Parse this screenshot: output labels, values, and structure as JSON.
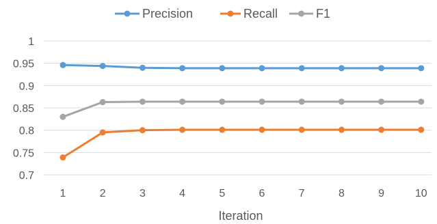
{
  "chart_data": {
    "type": "line",
    "title": "",
    "xlabel": "Iteration",
    "ylabel": "",
    "categories": [
      "1",
      "2",
      "3",
      "4",
      "5",
      "6",
      "7",
      "8",
      "9",
      "10"
    ],
    "ylim": [
      0.7,
      1
    ],
    "yticks": [
      "0.7",
      "0.75",
      "0.8",
      "0.85",
      "0.9",
      "0.95",
      "1"
    ],
    "grid": true,
    "legend_position": "top",
    "series": [
      {
        "name": "Precision",
        "color": "#5B9BD5",
        "values": [
          0.946,
          0.944,
          0.94,
          0.939,
          0.939,
          0.939,
          0.939,
          0.939,
          0.939,
          0.939
        ]
      },
      {
        "name": "Recall",
        "color": "#ED7D31",
        "values": [
          0.739,
          0.795,
          0.8,
          0.801,
          0.801,
          0.801,
          0.801,
          0.801,
          0.801,
          0.801
        ]
      },
      {
        "name": "F1",
        "color": "#A5A5A5",
        "values": [
          0.83,
          0.863,
          0.864,
          0.864,
          0.864,
          0.864,
          0.864,
          0.864,
          0.864,
          0.864
        ]
      }
    ]
  }
}
